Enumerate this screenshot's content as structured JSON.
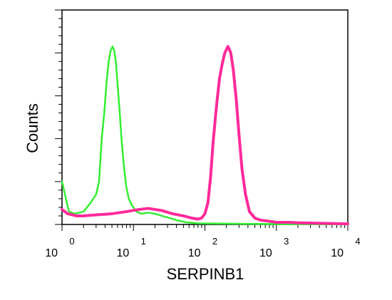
{
  "chart_data": {
    "type": "line",
    "title": "",
    "xlabel": "SERPINB1",
    "ylabel": "Counts",
    "x_scale": "log",
    "xlim": [
      1,
      10000
    ],
    "ylim": [
      0,
      100
    ],
    "x_ticks": [
      {
        "base": "10",
        "exp": "0",
        "value": 1
      },
      {
        "base": "10",
        "exp": "1",
        "value": 10
      },
      {
        "base": "10",
        "exp": "2",
        "value": 100
      },
      {
        "base": "10",
        "exp": "3",
        "value": 1000
      },
      {
        "base": "10",
        "exp": "4",
        "value": 10000
      }
    ],
    "grid": false,
    "legend": "none",
    "series": [
      {
        "color": "#33ee33",
        "stroke_width": 2.5,
        "points": [
          [
            1,
            20
          ],
          [
            1.1,
            14
          ],
          [
            1.25,
            6
          ],
          [
            1.5,
            5
          ],
          [
            2,
            6
          ],
          [
            2.5,
            10
          ],
          [
            3,
            14
          ],
          [
            3.3,
            20
          ],
          [
            3.6,
            40
          ],
          [
            3.9,
            52
          ],
          [
            4.2,
            66
          ],
          [
            4.5,
            76
          ],
          [
            4.8,
            81
          ],
          [
            5.1,
            83
          ],
          [
            5.4,
            81
          ],
          [
            5.7,
            75
          ],
          [
            6,
            65
          ],
          [
            6.4,
            53
          ],
          [
            6.8,
            40
          ],
          [
            7.3,
            28
          ],
          [
            7.9,
            18
          ],
          [
            8.6,
            12
          ],
          [
            9.5,
            9
          ],
          [
            11,
            6
          ],
          [
            13,
            5
          ],
          [
            16,
            5.5
          ],
          [
            20,
            5
          ],
          [
            25,
            4
          ],
          [
            32,
            3
          ],
          [
            40,
            2
          ],
          [
            55,
            1
          ],
          [
            80,
            0.5
          ],
          [
            150,
            0.4
          ],
          [
            400,
            0.3
          ],
          [
            1000,
            0.2
          ],
          [
            10000,
            0
          ]
        ]
      },
      {
        "color": "#ff2a9a",
        "stroke_width": 4,
        "points": [
          [
            1,
            7
          ],
          [
            1.2,
            5
          ],
          [
            1.6,
            4
          ],
          [
            2,
            4
          ],
          [
            3,
            4.5
          ],
          [
            5,
            5
          ],
          [
            8,
            6
          ],
          [
            12,
            7
          ],
          [
            16,
            7.5
          ],
          [
            20,
            7
          ],
          [
            25,
            6.5
          ],
          [
            35,
            5
          ],
          [
            50,
            4
          ],
          [
            65,
            3
          ],
          [
            80,
            2.5
          ],
          [
            90,
            3
          ],
          [
            100,
            5
          ],
          [
            110,
            10
          ],
          [
            120,
            22
          ],
          [
            130,
            38
          ],
          [
            145,
            55
          ],
          [
            160,
            68
          ],
          [
            175,
            75
          ],
          [
            190,
            80
          ],
          [
            210,
            83
          ],
          [
            230,
            80
          ],
          [
            250,
            72
          ],
          [
            275,
            58
          ],
          [
            300,
            42
          ],
          [
            330,
            26
          ],
          [
            370,
            14
          ],
          [
            420,
            6
          ],
          [
            500,
            3
          ],
          [
            600,
            2
          ],
          [
            800,
            1.5
          ],
          [
            1000,
            1
          ],
          [
            1500,
            1
          ],
          [
            2000,
            0.8
          ],
          [
            5000,
            0.5
          ],
          [
            10000,
            0.3
          ]
        ]
      }
    ]
  }
}
